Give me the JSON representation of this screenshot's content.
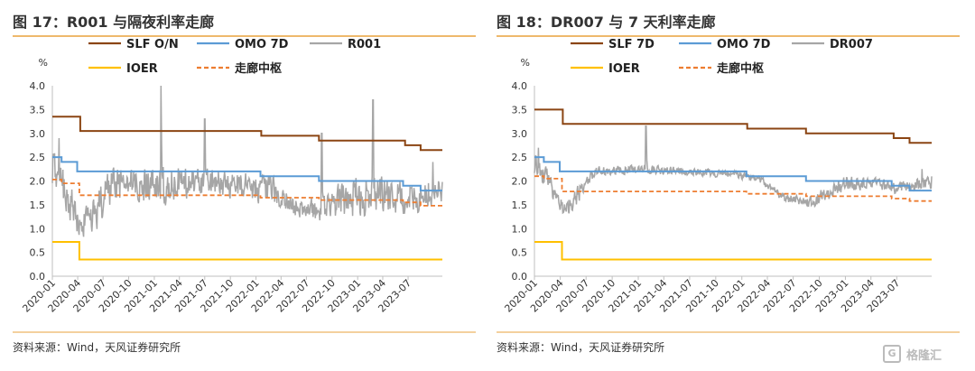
{
  "figures": [
    {
      "title": "图 17：R001 与隔夜利率走廊",
      "source": "资料来源：Wind，天风证券研究所",
      "unit": "%"
    },
    {
      "title": "图 18：DR007 与 7 天利率走廊",
      "source": "资料来源：Wind，天风证券研究所",
      "unit": "%"
    }
  ],
  "watermark": {
    "text": "格隆汇",
    "icon": "g-logo-icon"
  },
  "chart_data": [
    {
      "type": "line",
      "ylim": [
        0,
        4
      ],
      "yticks": [
        0,
        0.5,
        1.0,
        1.5,
        2.0,
        2.5,
        3.0,
        3.5,
        4.0
      ],
      "ytick_labels": [
        "0.0",
        "0.5",
        "1.0",
        "1.5",
        "2.0",
        "2.5",
        "3.0",
        "3.5",
        "4.0"
      ],
      "xrange": [
        "2020-01-01",
        "2023-11-01"
      ],
      "xtick_labels": [
        "2020-01",
        "2020-04",
        "2020-07",
        "2020-10",
        "2021-01",
        "2021-04",
        "2021-07",
        "2021-10",
        "2022-01",
        "2022-04",
        "2022-07",
        "2022-10",
        "2023-01",
        "2023-04",
        "2023-07"
      ],
      "legend": "top",
      "grid": false,
      "series": [
        {
          "name": "SLF O/N",
          "color": "#8B4513",
          "style": "solid",
          "width": 2,
          "step": true,
          "points": [
            [
              "2020-01-01",
              3.35
            ],
            [
              "2020-04-10",
              3.05
            ],
            [
              "2022-01-20",
              2.95
            ],
            [
              "2022-08-15",
              2.85
            ],
            [
              "2023-06-20",
              2.75
            ],
            [
              "2023-08-15",
              2.65
            ],
            [
              "2023-11-01",
              2.65
            ]
          ]
        },
        {
          "name": "OMO 7D",
          "color": "#5B9BD5",
          "style": "solid",
          "width": 2,
          "step": true,
          "points": [
            [
              "2020-01-01",
              2.5
            ],
            [
              "2020-02-03",
              2.4
            ],
            [
              "2020-03-30",
              2.2
            ],
            [
              "2022-01-17",
              2.1
            ],
            [
              "2022-08-15",
              2.0
            ],
            [
              "2023-06-13",
              1.9
            ],
            [
              "2023-08-15",
              1.8
            ],
            [
              "2023-11-01",
              1.8
            ]
          ]
        },
        {
          "name": "R001",
          "color": "#A6A6A6",
          "style": "solid",
          "width": 1.5,
          "step": false,
          "points": []
        },
        {
          "name": "IOER",
          "color": "#FFC000",
          "style": "solid",
          "width": 2,
          "step": true,
          "points": [
            [
              "2020-01-01",
              0.72
            ],
            [
              "2020-04-07",
              0.35
            ],
            [
              "2023-11-01",
              0.35
            ]
          ]
        },
        {
          "name": "走廊中枢",
          "color": "#ED7D31",
          "style": "dashed",
          "width": 1.8,
          "step": true,
          "points": [
            [
              "2020-01-01",
              2.03
            ],
            [
              "2020-02-03",
              1.95
            ],
            [
              "2020-04-07",
              1.7
            ],
            [
              "2022-01-17",
              1.65
            ],
            [
              "2022-08-15",
              1.6
            ],
            [
              "2023-06-13",
              1.55
            ],
            [
              "2023-08-15",
              1.48
            ],
            [
              "2023-11-01",
              1.48
            ]
          ]
        }
      ],
      "noise_profile": [
        [
          "2020-01-01",
          2.4,
          0.45
        ],
        [
          "2020-03-01",
          1.6,
          0.5
        ],
        [
          "2020-04-15",
          1.0,
          0.4
        ],
        [
          "2020-06-01",
          1.3,
          0.5
        ],
        [
          "2020-08-01",
          1.9,
          0.45
        ],
        [
          "2020-11-01",
          1.9,
          0.4
        ],
        [
          "2021-02-01",
          1.9,
          0.5
        ],
        [
          "2021-06-01",
          2.0,
          0.35
        ],
        [
          "2021-12-01",
          1.9,
          0.35
        ],
        [
          "2022-03-01",
          1.8,
          0.35
        ],
        [
          "2022-06-01",
          1.4,
          0.25
        ],
        [
          "2022-09-01",
          1.4,
          0.3
        ],
        [
          "2022-11-01",
          1.6,
          0.45
        ],
        [
          "2023-01-01",
          1.7,
          0.55
        ],
        [
          "2023-04-01",
          1.7,
          0.45
        ],
        [
          "2023-07-01",
          1.6,
          0.4
        ],
        [
          "2023-11-01",
          1.8,
          0.4
        ]
      ],
      "spikes": [
        [
          "2021-01-25",
          4.0
        ],
        [
          "2021-07-01",
          3.3
        ],
        [
          "2022-08-25",
          3.0
        ],
        [
          "2023-02-25",
          3.7
        ],
        [
          "2020-01-25",
          2.9
        ],
        [
          "2023-09-28",
          2.4
        ]
      ]
    },
    {
      "type": "line",
      "ylim": [
        0,
        4
      ],
      "yticks": [
        0,
        0.5,
        1.0,
        1.5,
        2.0,
        2.5,
        3.0,
        3.5,
        4.0
      ],
      "ytick_labels": [
        "0.0",
        "0.5",
        "1.0",
        "1.5",
        "2.0",
        "2.5",
        "3.0",
        "3.5",
        "4.0"
      ],
      "xrange": [
        "2020-01-01",
        "2023-11-01"
      ],
      "xtick_labels": [
        "2020-01",
        "2020-04",
        "2020-07",
        "2020-10",
        "2021-01",
        "2021-04",
        "2021-07",
        "2021-10",
        "2022-01",
        "2022-04",
        "2022-07",
        "2022-10",
        "2023-01",
        "2023-04",
        "2023-07"
      ],
      "legend": "top",
      "grid": false,
      "series": [
        {
          "name": "SLF 7D",
          "color": "#8B4513",
          "style": "solid",
          "width": 2,
          "step": true,
          "points": [
            [
              "2020-01-01",
              3.5
            ],
            [
              "2020-04-10",
              3.2
            ],
            [
              "2022-01-20",
              3.1
            ],
            [
              "2022-08-15",
              3.0
            ],
            [
              "2023-06-20",
              2.9
            ],
            [
              "2023-08-15",
              2.8
            ],
            [
              "2023-11-01",
              2.8
            ]
          ]
        },
        {
          "name": "OMO 7D",
          "color": "#5B9BD5",
          "style": "solid",
          "width": 2,
          "step": true,
          "points": [
            [
              "2020-01-01",
              2.5
            ],
            [
              "2020-02-03",
              2.4
            ],
            [
              "2020-03-30",
              2.2
            ],
            [
              "2022-01-17",
              2.1
            ],
            [
              "2022-08-15",
              2.0
            ],
            [
              "2023-06-13",
              1.9
            ],
            [
              "2023-08-15",
              1.8
            ],
            [
              "2023-11-01",
              1.8
            ]
          ]
        },
        {
          "name": "DR007",
          "color": "#A6A6A6",
          "style": "solid",
          "width": 1.5,
          "step": false,
          "points": []
        },
        {
          "name": "IOER",
          "color": "#FFC000",
          "style": "solid",
          "width": 2,
          "step": true,
          "points": [
            [
              "2020-01-01",
              0.72
            ],
            [
              "2020-04-07",
              0.35
            ],
            [
              "2023-11-01",
              0.35
            ]
          ]
        },
        {
          "name": "走廊中枢",
          "color": "#ED7D31",
          "style": "dashed",
          "width": 1.8,
          "step": true,
          "points": [
            [
              "2020-01-01",
              2.1
            ],
            [
              "2020-02-03",
              2.05
            ],
            [
              "2020-04-07",
              1.78
            ],
            [
              "2022-01-17",
              1.73
            ],
            [
              "2022-08-15",
              1.68
            ],
            [
              "2023-06-13",
              1.63
            ],
            [
              "2023-08-15",
              1.58
            ],
            [
              "2023-11-01",
              1.58
            ]
          ]
        }
      ],
      "noise_profile": [
        [
          "2020-01-01",
          2.4,
          0.25
        ],
        [
          "2020-03-01",
          1.9,
          0.3
        ],
        [
          "2020-04-15",
          1.4,
          0.2
        ],
        [
          "2020-06-01",
          1.7,
          0.25
        ],
        [
          "2020-08-01",
          2.2,
          0.12
        ],
        [
          "2021-01-01",
          2.25,
          0.12
        ],
        [
          "2021-06-01",
          2.2,
          0.1
        ],
        [
          "2021-12-01",
          2.15,
          0.1
        ],
        [
          "2022-03-01",
          2.05,
          0.1
        ],
        [
          "2022-06-01",
          1.65,
          0.12
        ],
        [
          "2022-09-01",
          1.55,
          0.15
        ],
        [
          "2022-11-01",
          1.75,
          0.2
        ],
        [
          "2023-01-01",
          1.95,
          0.2
        ],
        [
          "2023-04-01",
          1.95,
          0.15
        ],
        [
          "2023-07-01",
          1.85,
          0.15
        ],
        [
          "2023-11-01",
          2.0,
          0.18
        ]
      ],
      "spikes": [
        [
          "2021-01-28",
          3.15
        ],
        [
          "2020-01-15",
          2.7
        ],
        [
          "2023-09-28",
          2.25
        ]
      ]
    }
  ]
}
